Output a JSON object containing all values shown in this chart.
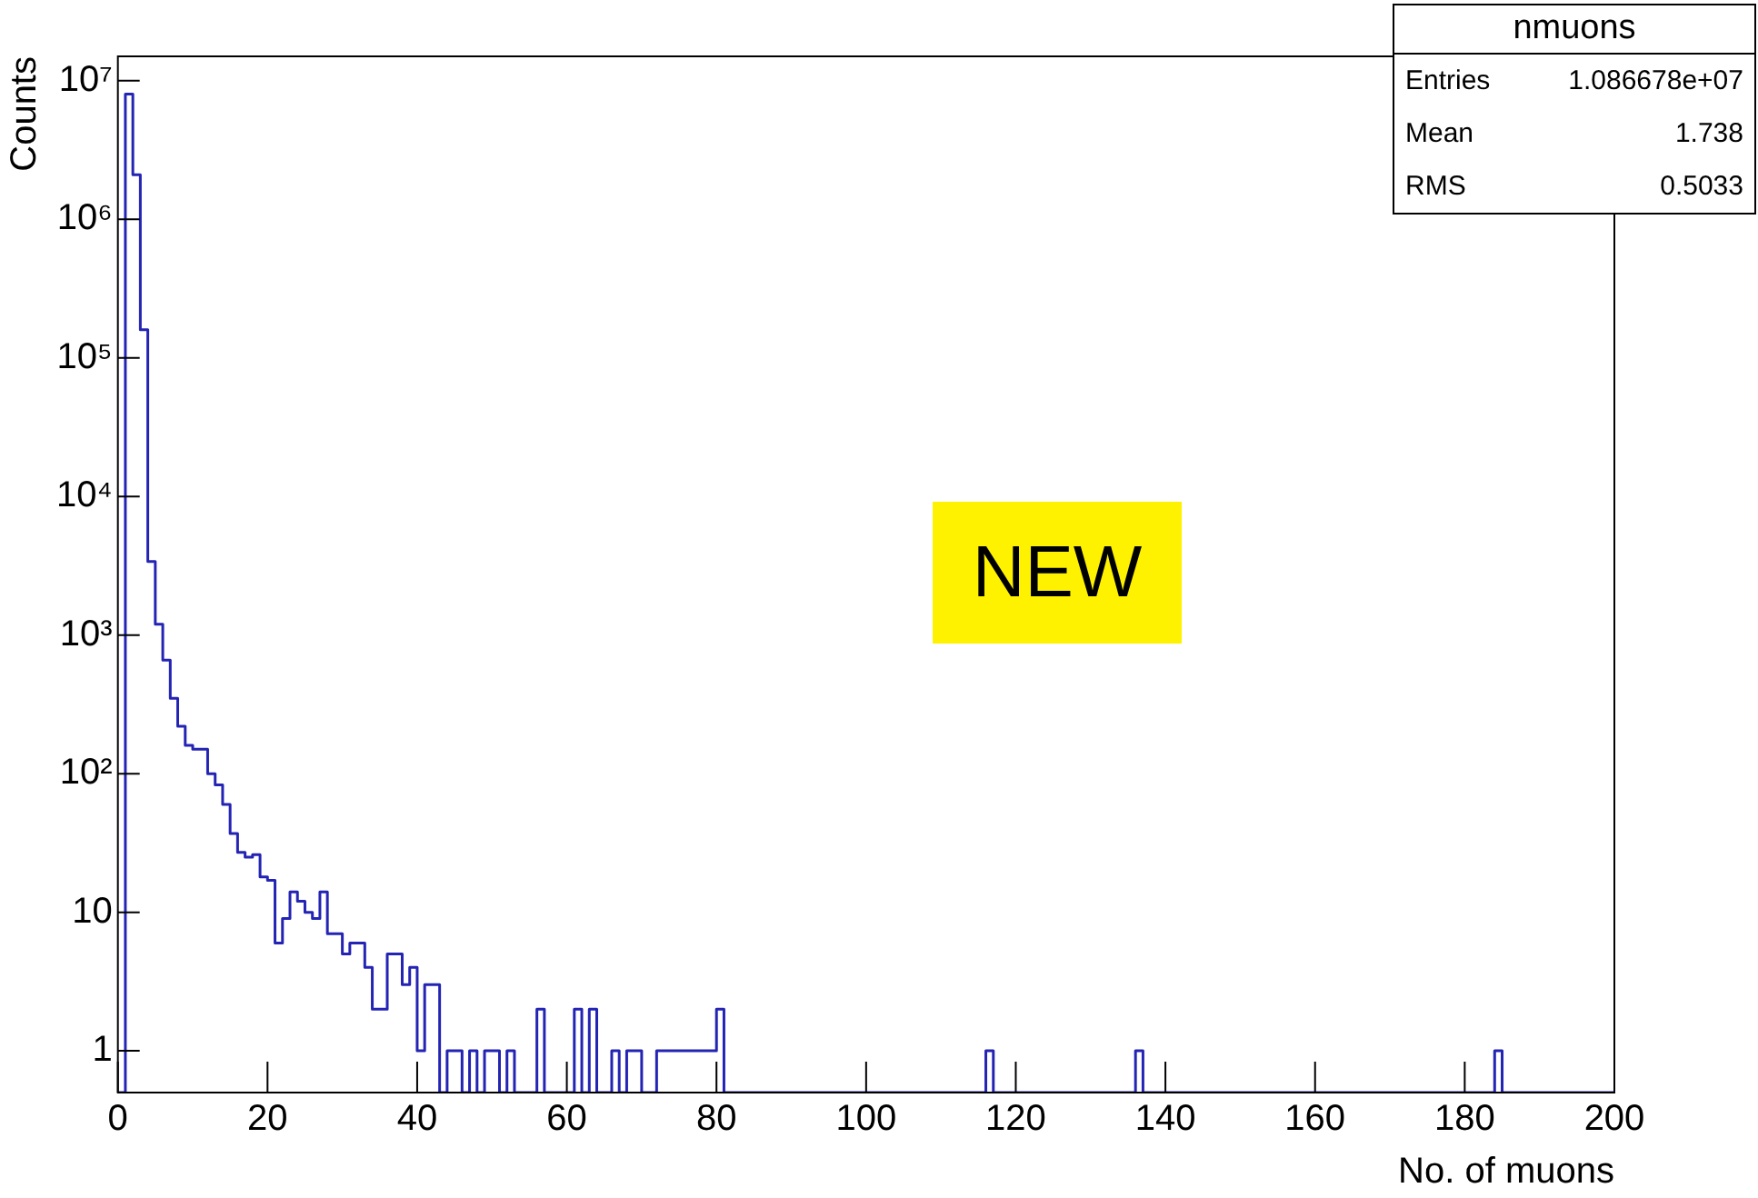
{
  "chart_data": {
    "type": "histogram",
    "xlabel": "No. of muons",
    "ylabel": "Counts",
    "color": "#2424b4",
    "log": "y",
    "bins": [
      0,
      1,
      2,
      3,
      4,
      5,
      6,
      7,
      8,
      9,
      10,
      11,
      12,
      13,
      14,
      15,
      16,
      17,
      18,
      19,
      20,
      21,
      22,
      23,
      24,
      25,
      26,
      27,
      28,
      29,
      30,
      31,
      32,
      33,
      34,
      35,
      36,
      37,
      38,
      39,
      40,
      41,
      42,
      43,
      44,
      45,
      46,
      47,
      48,
      49,
      50,
      51,
      52,
      53,
      54,
      55,
      56,
      57,
      58,
      59,
      60,
      61,
      62,
      63,
      64,
      65,
      66,
      67,
      68,
      69,
      70,
      71,
      72,
      73,
      74,
      75,
      76,
      77,
      78,
      79,
      80,
      81,
      82,
      83,
      84,
      85,
      86,
      87,
      88,
      89,
      90,
      91,
      92,
      93,
      94,
      95,
      96,
      97,
      98,
      99,
      100,
      101,
      102,
      103,
      104,
      105,
      106,
      107,
      108,
      109,
      110,
      111,
      112,
      113,
      114,
      115,
      116,
      117,
      118,
      119,
      120,
      121,
      122,
      123,
      124,
      125,
      126,
      127,
      128,
      129,
      130,
      131,
      132,
      133,
      134,
      135,
      136,
      137,
      138,
      139,
      140,
      141,
      142,
      143,
      144,
      145,
      146,
      147,
      148,
      149,
      150,
      151,
      152,
      153,
      154,
      155,
      156,
      157,
      158,
      159,
      160,
      161,
      162,
      163,
      164,
      165,
      166,
      167,
      168,
      169,
      170,
      171,
      172,
      173,
      174,
      175,
      176,
      177,
      178,
      179,
      180,
      181,
      182,
      183,
      184,
      185,
      186,
      187,
      188,
      189,
      190,
      191,
      192,
      193,
      194,
      195,
      196,
      197,
      198,
      199,
      200
    ],
    "values": [
      null,
      8000000,
      2100000,
      160000,
      3400,
      1200,
      660,
      350,
      220,
      160,
      150,
      150,
      100,
      83,
      60,
      37,
      27,
      25,
      26,
      18,
      17,
      6,
      9,
      14,
      12,
      10,
      9,
      14,
      7,
      7,
      5,
      6,
      6,
      4,
      2,
      2,
      5,
      5,
      3,
      4,
      1,
      3,
      3,
      null,
      1,
      1,
      null,
      1,
      null,
      1,
      1,
      null,
      1,
      null,
      null,
      null,
      2,
      null,
      null,
      null,
      null,
      2,
      null,
      2,
      null,
      null,
      1,
      null,
      1,
      1,
      null,
      null,
      1,
      1,
      1,
      1,
      1,
      1,
      1,
      1,
      2,
      null,
      null,
      null,
      null,
      null,
      null,
      null,
      null,
      null,
      null,
      null,
      null,
      null,
      null,
      null,
      null,
      null,
      null,
      null,
      null,
      null,
      null,
      null,
      null,
      null,
      null,
      null,
      null,
      null,
      null,
      null,
      null,
      null,
      null,
      null,
      1,
      null,
      null,
      null,
      null,
      null,
      null,
      null,
      null,
      null,
      null,
      null,
      null,
      null,
      null,
      null,
      null,
      null,
      null,
      null,
      1,
      null,
      null,
      null,
      null,
      null,
      null,
      null,
      null,
      null,
      null,
      null,
      null,
      null,
      null,
      null,
      null,
      null,
      null,
      null,
      null,
      null,
      null,
      null,
      null,
      null,
      null,
      null,
      null,
      null,
      null,
      null,
      null,
      null,
      null,
      null,
      null,
      null,
      null,
      null,
      null,
      null,
      null,
      null,
      null,
      null,
      null,
      null,
      1,
      null,
      null,
      null,
      null,
      null,
      null,
      null,
      null,
      null,
      null,
      null,
      null,
      null,
      null,
      null
    ],
    "xlim": [
      0,
      200
    ],
    "xticks": [
      0,
      20,
      40,
      60,
      80,
      100,
      120,
      140,
      160,
      180,
      200
    ],
    "ylim": [
      0.5,
      15000000
    ],
    "yticks": [
      1,
      10,
      {
        "value": 100,
        "label": "10²"
      },
      {
        "value": 1000,
        "label": "10³"
      },
      {
        "value": 10000,
        "label": "10⁴"
      },
      {
        "value": 100000,
        "label": "10⁵"
      },
      {
        "value": 1000000,
        "label": "10⁶"
      },
      {
        "value": 10000000,
        "label": "10⁷"
      }
    ],
    "annotations": [
      "nmuons",
      "Entries",
      "1.086678e+07",
      "Mean",
      "1.738",
      "RMS",
      "0.5033",
      "NEW"
    ]
  }
}
